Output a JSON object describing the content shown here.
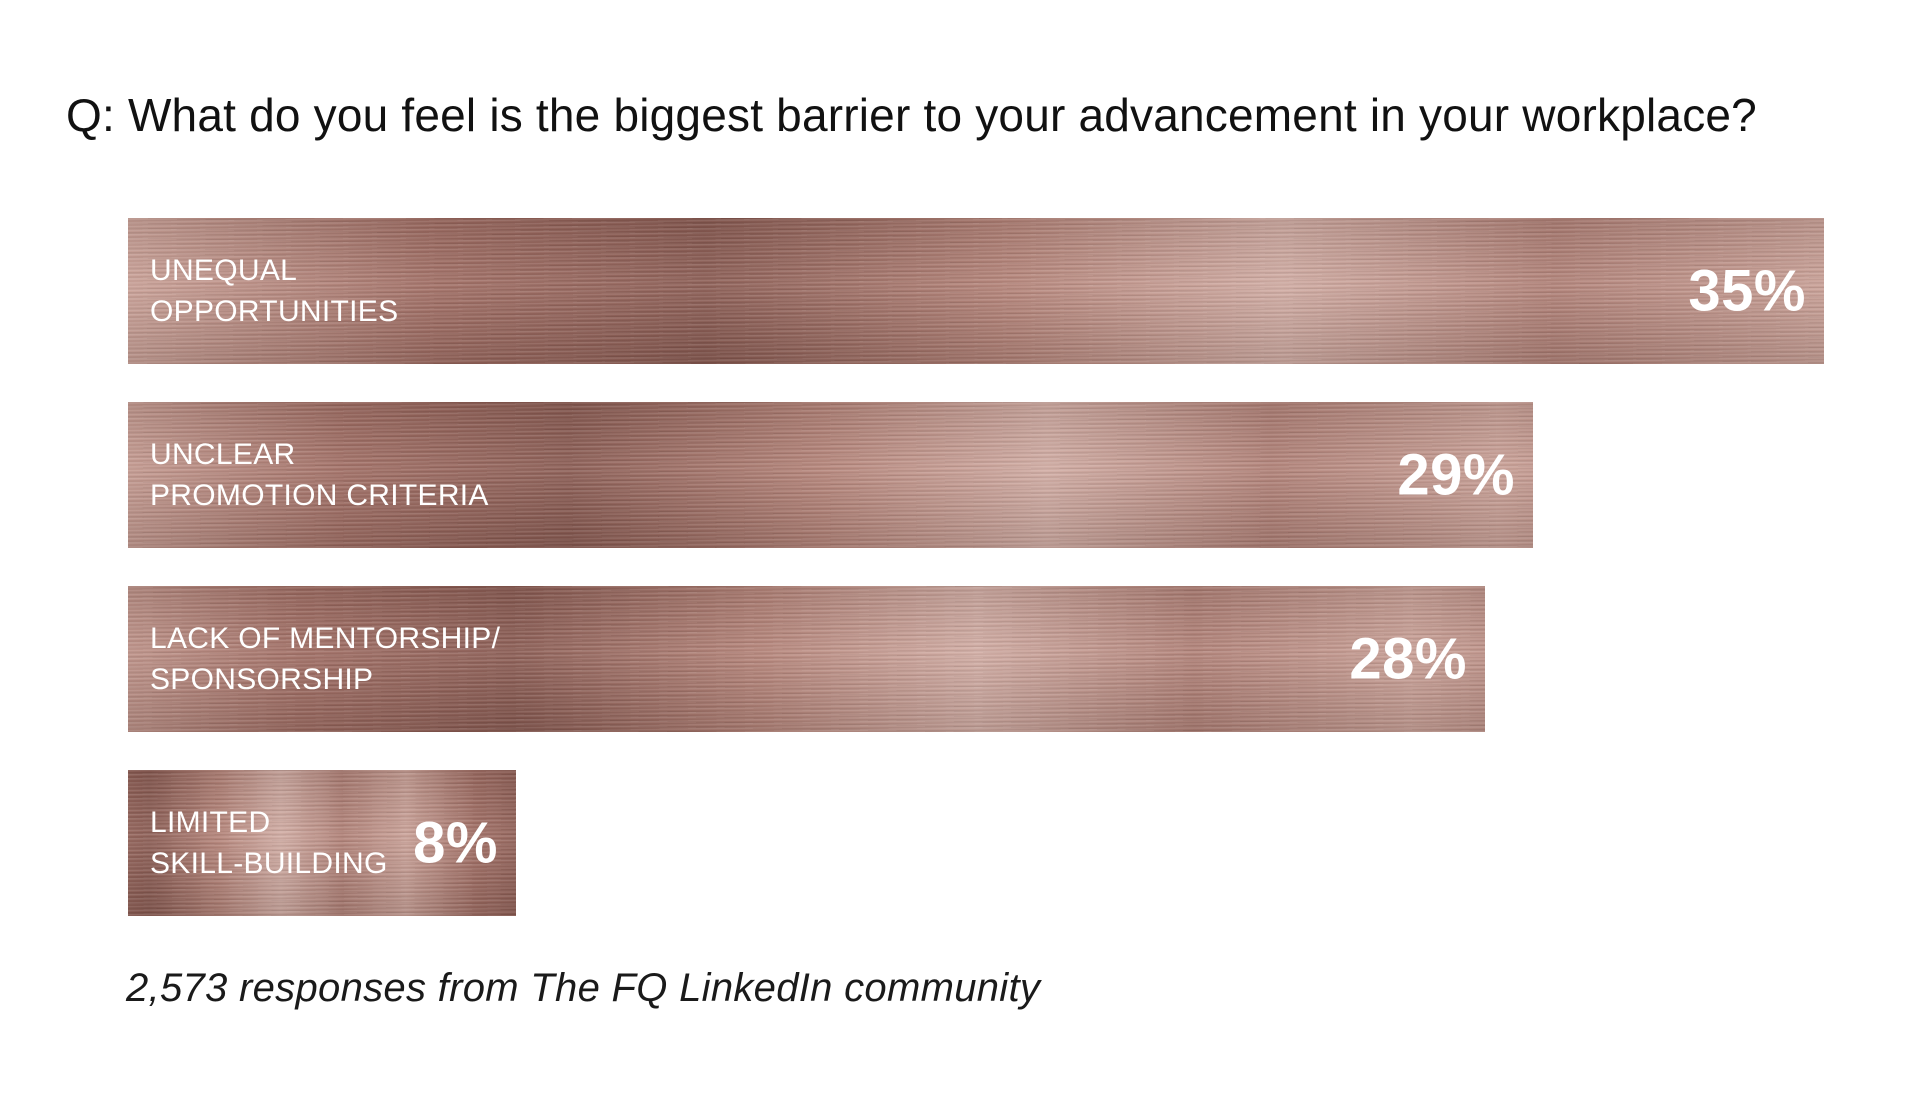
{
  "chart_data": {
    "type": "bar",
    "orientation": "horizontal",
    "title": "Q: What do you feel is the biggest barrier to your advancement in your workplace?",
    "categories": [
      [
        "UNEQUAL",
        "OPPORTUNITIES"
      ],
      [
        "UNCLEAR",
        "PROMOTION CRITERIA"
      ],
      [
        "LACK OF MENTORSHIP/",
        "SPONSORSHIP"
      ],
      [
        "LIMITED",
        "SKILL-BUILDING"
      ]
    ],
    "values": [
      35,
      29,
      28,
      8
    ],
    "value_labels": [
      "35%",
      "29%",
      "28%",
      "8%"
    ],
    "unit": "%",
    "xlim": [
      0,
      35
    ],
    "footnote": "2,573 responses from The FQ LinkedIn community",
    "bar_color": "#b07f75"
  }
}
